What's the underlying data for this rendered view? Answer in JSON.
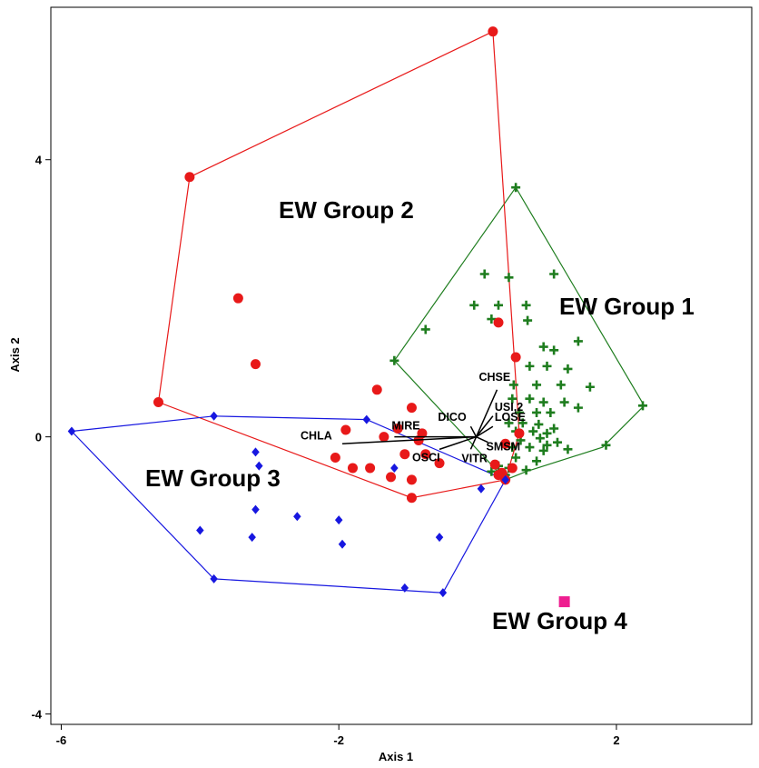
{
  "chart_data": {
    "type": "scatter",
    "xlabel": "Axis 1",
    "ylabel": "Axis 2",
    "xlim": [
      -6.15,
      3.95
    ],
    "ylim": [
      -4.15,
      6.2
    ],
    "x_ticks": [
      -6,
      -2,
      2
    ],
    "x_tick_labels": [
      "-6",
      "-2",
      "2"
    ],
    "y_ticks": [
      -4,
      0,
      4
    ],
    "y_tick_labels": [
      "-4",
      "0",
      "4"
    ],
    "grid": false,
    "legend": "none",
    "origin": [
      -0.02,
      0.0
    ],
    "series": [
      {
        "label": "EW Group 1",
        "marker": "cross",
        "color": "#1e7d1e",
        "hull": [
          [
            -1.2,
            1.1
          ],
          [
            0.55,
            3.6
          ],
          [
            2.4,
            0.45
          ],
          [
            1.8,
            -0.15
          ],
          [
            0.7,
            -0.5
          ],
          [
            0.4,
            -0.62
          ]
        ],
        "points": [
          [
            -1.2,
            1.1
          ],
          [
            -0.75,
            1.55
          ],
          [
            0.1,
            2.35
          ],
          [
            0.45,
            2.3
          ],
          [
            1.1,
            2.35
          ],
          [
            0.55,
            3.6
          ],
          [
            -0.05,
            1.9
          ],
          [
            0.3,
            1.9
          ],
          [
            0.7,
            1.9
          ],
          [
            0.2,
            1.7
          ],
          [
            0.72,
            1.68
          ],
          [
            0.95,
            1.3
          ],
          [
            1.1,
            1.25
          ],
          [
            1.45,
            1.38
          ],
          [
            0.75,
            1.02
          ],
          [
            1.0,
            1.02
          ],
          [
            1.3,
            0.98
          ],
          [
            0.52,
            0.75
          ],
          [
            0.85,
            0.75
          ],
          [
            1.2,
            0.75
          ],
          [
            1.62,
            0.72
          ],
          [
            0.5,
            0.55
          ],
          [
            0.75,
            0.55
          ],
          [
            0.95,
            0.5
          ],
          [
            1.25,
            0.5
          ],
          [
            1.45,
            0.42
          ],
          [
            0.6,
            0.35
          ],
          [
            0.85,
            0.35
          ],
          [
            1.05,
            0.35
          ],
          [
            0.45,
            0.2
          ],
          [
            0.65,
            0.2
          ],
          [
            0.88,
            0.18
          ],
          [
            1.1,
            0.12
          ],
          [
            0.55,
            0.08
          ],
          [
            0.8,
            0.08
          ],
          [
            1.0,
            0.05
          ],
          [
            0.62,
            -0.05
          ],
          [
            0.9,
            -0.02
          ],
          [
            1.15,
            -0.08
          ],
          [
            0.5,
            -0.15
          ],
          [
            0.75,
            -0.15
          ],
          [
            0.95,
            -0.2
          ],
          [
            1.3,
            -0.18
          ],
          [
            1.85,
            -0.12
          ],
          [
            2.38,
            0.45
          ],
          [
            0.55,
            -0.3
          ],
          [
            0.85,
            -0.35
          ],
          [
            0.45,
            -0.45
          ],
          [
            0.4,
            -0.55
          ],
          [
            0.7,
            -0.48
          ],
          [
            0.4,
            -0.62
          ],
          [
            0.3,
            -0.42
          ],
          [
            0.2,
            -0.5
          ],
          [
            1.0,
            -0.12
          ]
        ]
      },
      {
        "label": "EW Group 2",
        "marker": "circle",
        "color": "#e81919",
        "hull": [
          [
            0.22,
            5.85
          ],
          [
            -4.15,
            3.75
          ],
          [
            -4.6,
            0.5
          ],
          [
            -0.95,
            -0.88
          ],
          [
            0.4,
            -0.62
          ],
          [
            0.6,
            0.05
          ]
        ],
        "points": [
          [
            0.22,
            5.85
          ],
          [
            -4.15,
            3.75
          ],
          [
            -4.6,
            0.5
          ],
          [
            -3.45,
            2.0
          ],
          [
            -3.2,
            1.05
          ],
          [
            0.3,
            1.65
          ],
          [
            0.55,
            1.15
          ],
          [
            -1.45,
            0.68
          ],
          [
            -0.95,
            0.42
          ],
          [
            -1.9,
            0.1
          ],
          [
            -1.15,
            0.12
          ],
          [
            -0.8,
            0.05
          ],
          [
            -0.85,
            -0.05
          ],
          [
            -1.35,
            0.0
          ],
          [
            -1.05,
            -0.25
          ],
          [
            -0.75,
            -0.25
          ],
          [
            -2.05,
            -0.3
          ],
          [
            -1.55,
            -0.45
          ],
          [
            -1.8,
            -0.45
          ],
          [
            -1.25,
            -0.58
          ],
          [
            -0.95,
            -0.62
          ],
          [
            -0.95,
            -0.88
          ],
          [
            -0.55,
            -0.38
          ],
          [
            0.6,
            0.05
          ],
          [
            0.4,
            -0.1
          ],
          [
            0.5,
            -0.45
          ],
          [
            0.25,
            -0.4
          ],
          [
            0.35,
            -0.52
          ],
          [
            0.4,
            -0.62
          ],
          [
            0.3,
            -0.55
          ]
        ]
      },
      {
        "label": "EW Group 3",
        "marker": "diamond",
        "color": "#1717e0",
        "hull": [
          [
            -5.85,
            0.08
          ],
          [
            -3.8,
            0.3
          ],
          [
            -1.6,
            0.25
          ],
          [
            0.4,
            -0.62
          ],
          [
            -0.5,
            -2.25
          ],
          [
            -3.8,
            -2.05
          ]
        ],
        "points": [
          [
            -5.85,
            0.08
          ],
          [
            -3.8,
            0.3
          ],
          [
            -1.6,
            0.25
          ],
          [
            -3.2,
            -0.22
          ],
          [
            -3.15,
            -0.42
          ],
          [
            -1.2,
            -0.45
          ],
          [
            -4.0,
            -1.35
          ],
          [
            -3.2,
            -1.05
          ],
          [
            -3.25,
            -1.45
          ],
          [
            -2.6,
            -1.15
          ],
          [
            -2.0,
            -1.2
          ],
          [
            -1.95,
            -1.55
          ],
          [
            -3.8,
            -2.05
          ],
          [
            -1.05,
            -2.18
          ],
          [
            -0.5,
            -2.25
          ],
          [
            0.05,
            -0.75
          ],
          [
            0.4,
            -0.62
          ],
          [
            -0.55,
            -1.45
          ]
        ]
      },
      {
        "label": "EW Group 4",
        "marker": "square",
        "color": "#ee1e90",
        "hull": [],
        "points": [
          [
            1.25,
            -2.38
          ]
        ]
      }
    ],
    "vectors": [
      {
        "label": "CHLA",
        "x": -1.95,
        "y": -0.1
      },
      {
        "label": "MIRE",
        "x": -1.2,
        "y": 0.0
      },
      {
        "label": "DICO",
        "x": -0.1,
        "y": 0.15
      },
      {
        "label": "CHSE",
        "x": 0.28,
        "y": 0.68
      },
      {
        "label": "USI,2",
        "x": 0.22,
        "y": 0.3
      },
      {
        "label": "LOSE",
        "x": 0.22,
        "y": 0.15
      },
      {
        "label": "SMSM",
        "x": 0.15,
        "y": -0.08
      },
      {
        "label": "VITR",
        "x": -0.1,
        "y": -0.18
      },
      {
        "label": "OSCI",
        "x": -0.55,
        "y": -0.18
      }
    ],
    "annotations": [
      "EW Group 1",
      "EW Group 2",
      "EW Group 3",
      "EW Group 4"
    ]
  }
}
